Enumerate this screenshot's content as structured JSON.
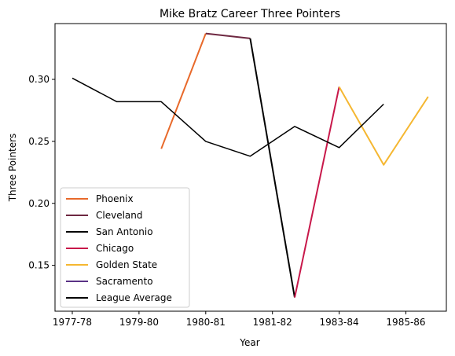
{
  "chart_data": {
    "type": "line",
    "title": "Mike Bratz Career Three Pointers",
    "xlabel": "Year",
    "ylabel": "Three Pointers",
    "x_ticks": [
      "1977-78",
      "1979-80",
      "1980-81",
      "1981-82",
      "1983-84",
      "1985-86"
    ],
    "y_ticks": [
      "0.15",
      "0.20",
      "0.25",
      "0.30"
    ],
    "ylim": [
      0.113,
      0.345
    ],
    "grid": false,
    "legend_position": "lower-left",
    "series": [
      {
        "name": "Phoenix",
        "color": "#e8692a",
        "points": [
          [
            2,
            0.244
          ],
          [
            3,
            0.337
          ]
        ]
      },
      {
        "name": "Cleveland",
        "color": "#6e2841",
        "points": [
          [
            3,
            0.337
          ],
          [
            4,
            0.333
          ]
        ]
      },
      {
        "name": "San Antonio",
        "color": "#000000",
        "points": [
          [
            4,
            0.333
          ],
          [
            5,
            0.124
          ]
        ]
      },
      {
        "name": "Chicago",
        "color": "#c8184a",
        "points": [
          [
            5,
            0.124
          ],
          [
            6,
            0.294
          ]
        ]
      },
      {
        "name": "Golden State",
        "color": "#f5b731",
        "points": [
          [
            6,
            0.294
          ],
          [
            7,
            0.231
          ],
          [
            8,
            0.286
          ]
        ]
      },
      {
        "name": "Sacramento",
        "color": "#5a3286",
        "points": []
      },
      {
        "name": "League Average",
        "color": "#000000",
        "points": [
          [
            0,
            0.301
          ],
          [
            1,
            0.282
          ],
          [
            2,
            0.282
          ],
          [
            3,
            0.25
          ],
          [
            4,
            0.238
          ],
          [
            5,
            0.262
          ],
          [
            6,
            0.245
          ],
          [
            7,
            0.28
          ]
        ]
      }
    ]
  }
}
